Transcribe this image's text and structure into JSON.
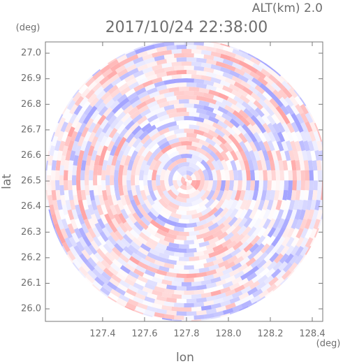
{
  "chart_data": {
    "type": "ppi",
    "title": "2017/10/24 22:38:00",
    "subtitle": "ALT(km)  2.0",
    "xlabel": "lon",
    "ylabel": "lat",
    "xunit": "(deg)",
    "yunit": "(deg)",
    "xlim": [
      127.127,
      128.45
    ],
    "ylim": [
      25.951,
      27.044
    ],
    "xticks": [
      127.4,
      127.6,
      127.8,
      {
        "value": 128,
        "label": "128.0"
      },
      128.2,
      128.4
    ],
    "yticks": [
      {
        "value": 26,
        "label": "26.0"
      },
      26.1,
      26.2,
      26.3,
      26.4,
      26.5,
      26.6,
      26.7,
      26.8,
      26.9,
      {
        "value": 27,
        "label": "27.0"
      }
    ]
  }
}
